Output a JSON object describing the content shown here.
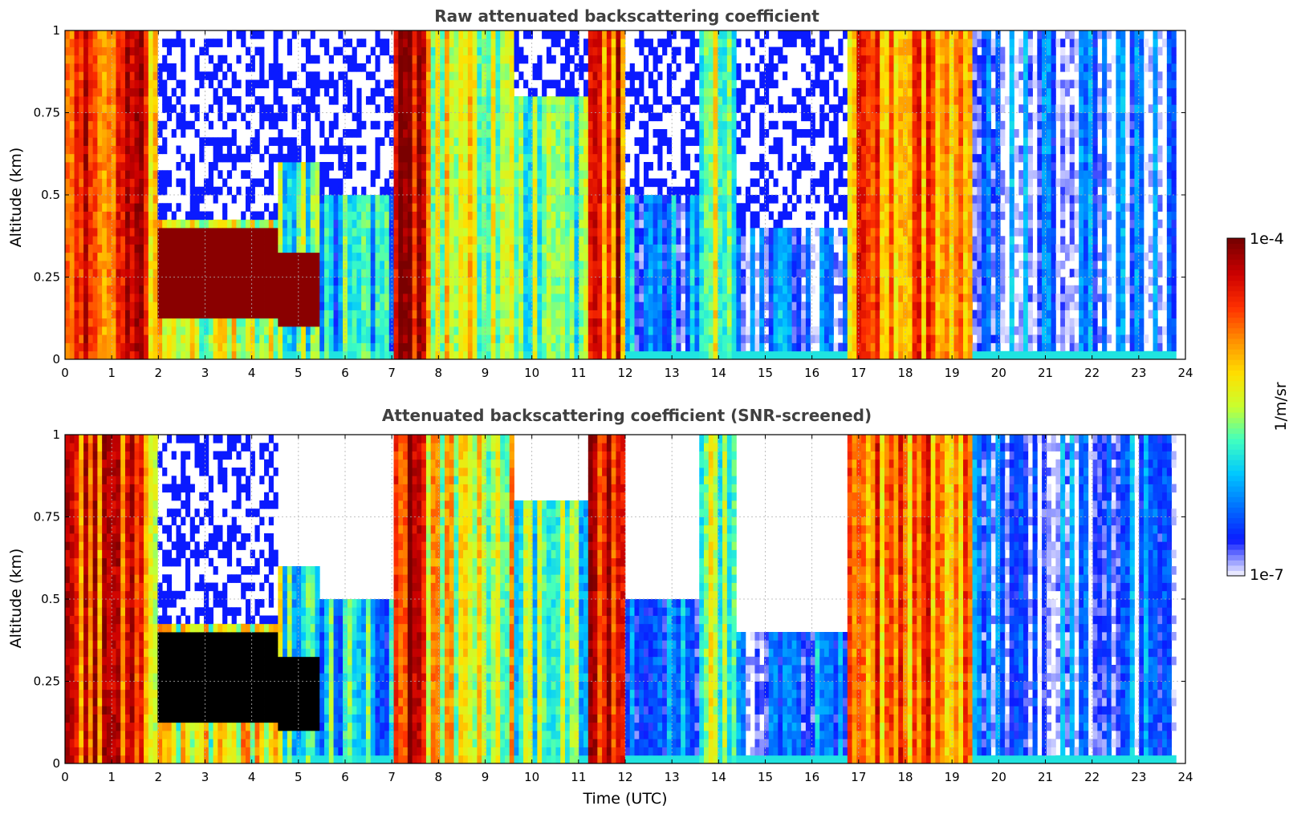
{
  "chart_data": {
    "colorbar": {
      "label": "1/m/sr",
      "max_label": "1e-4",
      "min_label": "1e-7",
      "scale": "log",
      "range": [
        1e-07,
        0.0001
      ],
      "colormap": [
        "#e8e8ff",
        "#0a1aff",
        "#0070ff",
        "#00c8ff",
        "#40ffc0",
        "#c8ff30",
        "#ffe000",
        "#ff9000",
        "#ff3000",
        "#cc0000",
        "#7a0000"
      ]
    },
    "panels": [
      {
        "type": "heatmap",
        "title": "Raw attenuated backscattering coefficient",
        "ylabel": "Altitude (km)",
        "xlabel": "",
        "xlim": [
          0,
          24
        ],
        "ylim": [
          0,
          1
        ],
        "xticks": [
          "0",
          "1",
          "2",
          "3",
          "4",
          "5",
          "6",
          "7",
          "8",
          "9",
          "10",
          "11",
          "12",
          "13",
          "14",
          "15",
          "16",
          "17",
          "18",
          "19",
          "20",
          "21",
          "22",
          "23",
          "24"
        ],
        "yticks": [
          "0",
          "0.25",
          "0.5",
          "0.75",
          "1"
        ],
        "grid": true,
        "screened": false
      },
      {
        "type": "heatmap",
        "title": "Attenuated backscattering coefficient (SNR-screened)",
        "ylabel": "Altitude (km)",
        "xlabel": "Time (UTC)",
        "xlim": [
          0,
          24
        ],
        "ylim": [
          0,
          1
        ],
        "xticks": [
          "0",
          "1",
          "2",
          "3",
          "4",
          "5",
          "6",
          "7",
          "8",
          "9",
          "10",
          "11",
          "12",
          "13",
          "14",
          "15",
          "16",
          "17",
          "18",
          "19",
          "20",
          "21",
          "22",
          "23",
          "24"
        ],
        "yticks": [
          "0",
          "0.25",
          "0.5",
          "0.75",
          "1"
        ],
        "grid": true,
        "screened": true
      }
    ],
    "profile_segments": [
      {
        "t": [
          0,
          1.7
        ],
        "level": 0.82,
        "top": 1.0
      },
      {
        "t": [
          1.7,
          2.0
        ],
        "level": 0.65,
        "top": 1.0
      },
      {
        "t": [
          2.0,
          4.6
        ],
        "level": 0.55,
        "top": 0.42,
        "cloud_top": 0.4,
        "cloud_base": 0.12
      },
      {
        "t": [
          4.6,
          5.5
        ],
        "level": 0.42,
        "top": 0.6,
        "cloud_top": 0.33,
        "cloud_base": 0.1
      },
      {
        "t": [
          5.5,
          7.0
        ],
        "level": 0.3,
        "top": 0.5
      },
      {
        "t": [
          7.0,
          7.7
        ],
        "level": 0.88,
        "top": 1.0
      },
      {
        "t": [
          7.7,
          9.6
        ],
        "level": 0.55,
        "top": 1.0
      },
      {
        "t": [
          9.6,
          11.2
        ],
        "level": 0.4,
        "top": 0.8
      },
      {
        "t": [
          11.2,
          12.0
        ],
        "level": 0.8,
        "top": 1.0
      },
      {
        "t": [
          12.0,
          13.6
        ],
        "level": 0.18,
        "top": 0.5
      },
      {
        "t": [
          13.6,
          14.4
        ],
        "level": 0.45,
        "top": 1.0
      },
      {
        "t": [
          14.4,
          16.8
        ],
        "level": 0.15,
        "top": 0.4
      },
      {
        "t": [
          16.8,
          19.4
        ],
        "level": 0.72,
        "top": 1.0
      },
      {
        "t": [
          19.4,
          23.8
        ],
        "level": 0.12,
        "top": 1.0
      }
    ]
  }
}
